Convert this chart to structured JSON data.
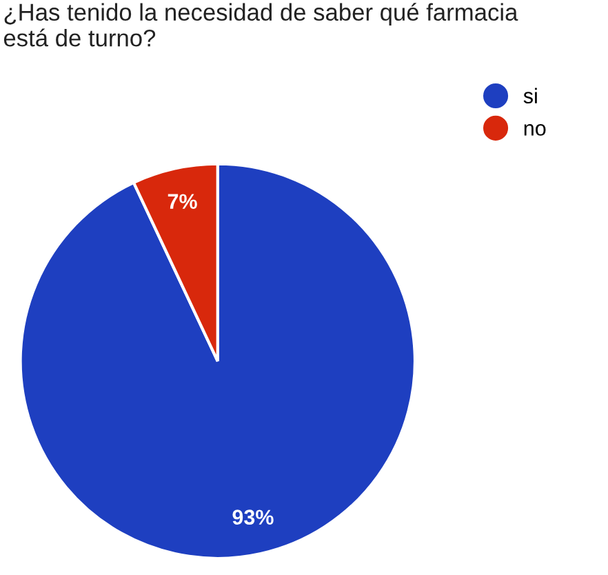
{
  "chart_data": {
    "type": "pie",
    "title": "¿Has tenido la necesidad de saber qué farmacia\nestá de turno?",
    "categories": [
      "si",
      "no"
    ],
    "values": [
      93,
      7
    ],
    "colors": [
      "#1e3fc0",
      "#d8280c"
    ],
    "value_labels": [
      "93%",
      "7%"
    ],
    "legend": "top right"
  }
}
